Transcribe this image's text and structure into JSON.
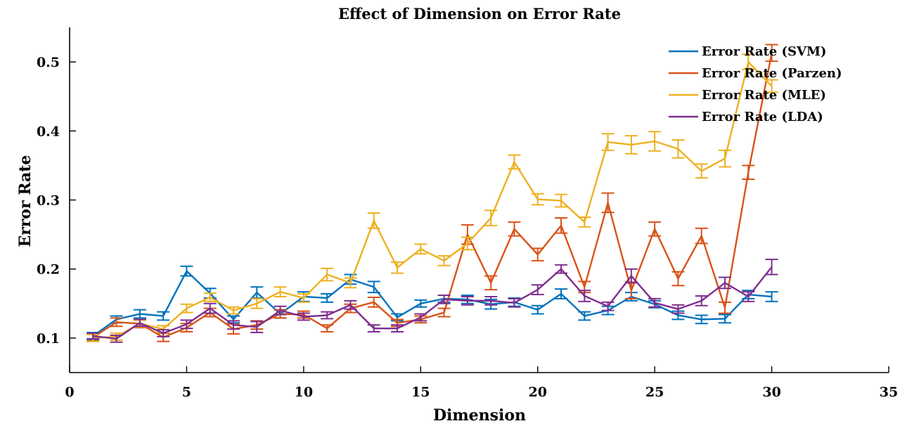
{
  "chart_data": {
    "type": "line",
    "title": "Effect of Dimension on Error Rate",
    "xlabel": "Dimension",
    "ylabel": "Error Rate",
    "xlim": [
      0,
      35
    ],
    "ylim": [
      0.05,
      0.55
    ],
    "xticks": [
      0,
      5,
      10,
      15,
      20,
      25,
      30,
      35
    ],
    "yticks": [
      0.1,
      0.2,
      0.3,
      0.4,
      0.5
    ],
    "ytick_labels": [
      "0.1",
      "0.2",
      "0.3",
      "0.4",
      "0.5"
    ],
    "grid": false,
    "legend_position": "top-right",
    "error_bars": true,
    "x": [
      1,
      2,
      3,
      4,
      5,
      6,
      7,
      8,
      9,
      10,
      11,
      12,
      13,
      14,
      15,
      16,
      17,
      18,
      19,
      20,
      21,
      22,
      23,
      24,
      25,
      26,
      27,
      28,
      29,
      30
    ],
    "series": [
      {
        "name": "Error Rate (SVM)",
        "color": "#0072BD",
        "values": [
          0.103,
          0.127,
          0.135,
          0.132,
          0.197,
          0.165,
          0.127,
          0.166,
          0.135,
          0.16,
          0.158,
          0.185,
          0.174,
          0.13,
          0.15,
          0.157,
          0.156,
          0.149,
          0.152,
          0.141,
          0.164,
          0.132,
          0.14,
          0.16,
          0.149,
          0.133,
          0.127,
          0.128,
          0.163,
          0.16
        ],
        "errors": [
          0.005,
          0.005,
          0.006,
          0.006,
          0.007,
          0.007,
          0.005,
          0.008,
          0.006,
          0.007,
          0.006,
          0.007,
          0.008,
          0.005,
          0.005,
          0.005,
          0.006,
          0.007,
          0.006,
          0.006,
          0.007,
          0.006,
          0.006,
          0.006,
          0.005,
          0.006,
          0.006,
          0.006,
          0.006,
          0.007
        ]
      },
      {
        "name": "Error Rate (Parzen)",
        "color": "#D95319",
        "values": [
          0.101,
          0.123,
          0.121,
          0.101,
          0.115,
          0.137,
          0.113,
          0.119,
          0.135,
          0.134,
          0.114,
          0.143,
          0.152,
          0.122,
          0.127,
          0.137,
          0.25,
          0.18,
          0.258,
          0.221,
          0.263,
          0.174,
          0.296,
          0.169,
          0.258,
          0.186,
          0.248,
          0.144,
          0.34,
          0.513
        ],
        "errors": [
          0.005,
          0.006,
          0.006,
          0.006,
          0.006,
          0.006,
          0.007,
          0.006,
          0.006,
          0.005,
          0.005,
          0.006,
          0.007,
          0.005,
          0.005,
          0.006,
          0.014,
          0.01,
          0.01,
          0.009,
          0.011,
          0.008,
          0.014,
          0.012,
          0.01,
          0.01,
          0.011,
          0.008,
          0.01,
          0.012
        ]
      },
      {
        "name": "Error Rate (MLE)",
        "color": "#EDB120",
        "values": [
          0.1,
          0.102,
          0.121,
          0.113,
          0.143,
          0.159,
          0.14,
          0.15,
          0.167,
          0.158,
          0.192,
          0.18,
          0.27,
          0.202,
          0.229,
          0.212,
          0.237,
          0.274,
          0.355,
          0.301,
          0.299,
          0.268,
          0.384,
          0.38,
          0.385,
          0.374,
          0.342,
          0.36,
          0.5,
          0.465
        ],
        "errors": [
          0.005,
          0.005,
          0.005,
          0.005,
          0.006,
          0.006,
          0.005,
          0.007,
          0.007,
          0.006,
          0.009,
          0.007,
          0.011,
          0.008,
          0.007,
          0.007,
          0.009,
          0.011,
          0.01,
          0.008,
          0.009,
          0.007,
          0.012,
          0.013,
          0.014,
          0.013,
          0.01,
          0.012,
          0.011,
          0.009
        ]
      },
      {
        "name": "Error Rate (LDA)",
        "color": "#7E2F8E",
        "values": [
          0.103,
          0.099,
          0.122,
          0.107,
          0.12,
          0.143,
          0.119,
          0.116,
          0.14,
          0.131,
          0.133,
          0.148,
          0.114,
          0.114,
          0.13,
          0.156,
          0.154,
          0.154,
          0.151,
          0.17,
          0.2,
          0.161,
          0.146,
          0.19,
          0.151,
          0.142,
          0.154,
          0.18,
          0.16,
          0.203
        ],
        "errors": [
          0.004,
          0.005,
          0.005,
          0.005,
          0.006,
          0.007,
          0.006,
          0.008,
          0.006,
          0.005,
          0.005,
          0.006,
          0.005,
          0.005,
          0.005,
          0.006,
          0.006,
          0.006,
          0.006,
          0.007,
          0.006,
          0.008,
          0.006,
          0.01,
          0.006,
          0.006,
          0.007,
          0.008,
          0.007,
          0.011
        ]
      }
    ]
  }
}
